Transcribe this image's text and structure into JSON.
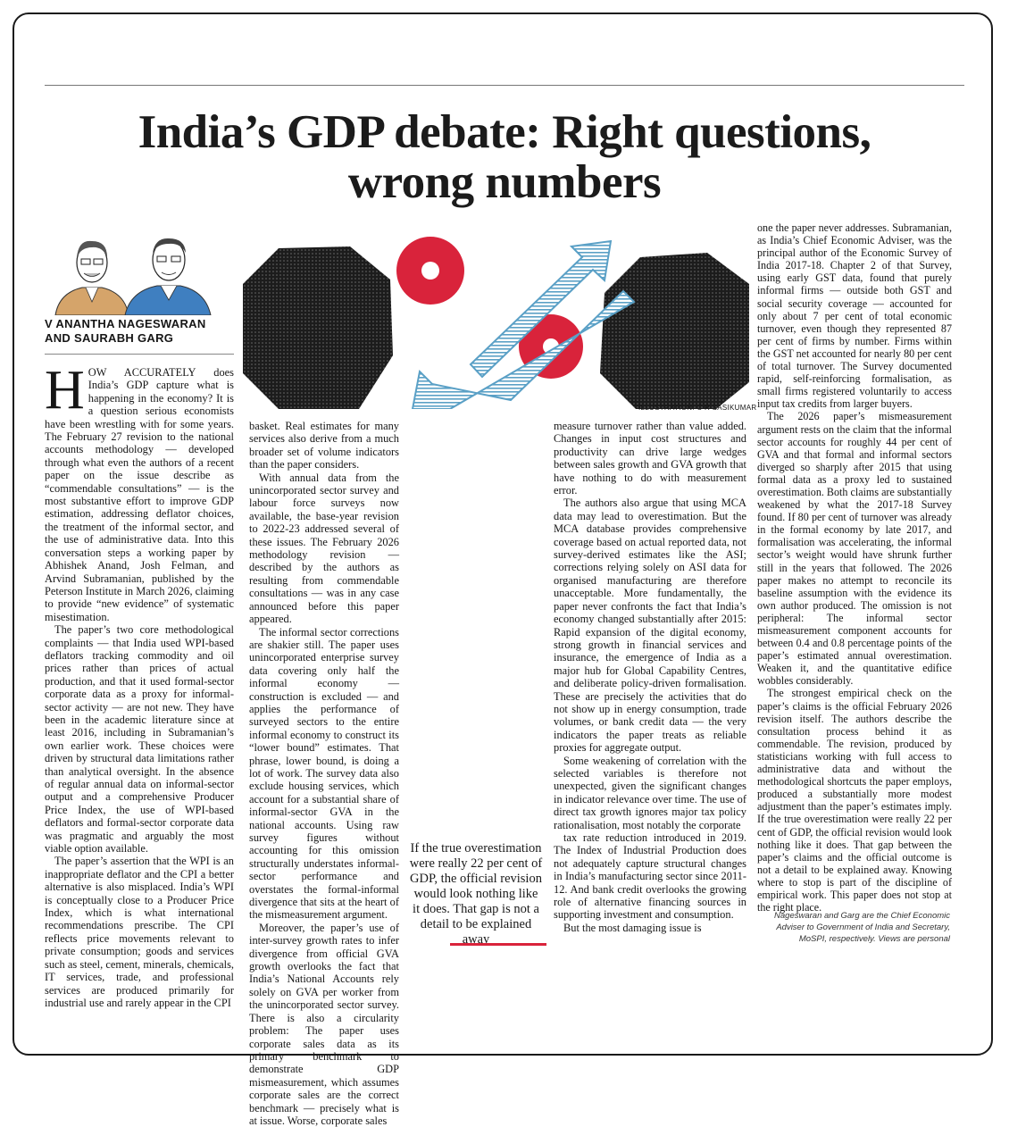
{
  "headline": {
    "line1": "India’s GDP debate: Right questions,",
    "line2": "wrong numbers"
  },
  "byline": {
    "line1": "V ANANTHA NAGESWARAN",
    "line2": "AND SAURABH GARG"
  },
  "illustration_credit": "ILLUSTRATION: C R SASIKUMAR",
  "colors": {
    "accent_red": "#d9233b",
    "pattern_blue": "#5aa0c6",
    "ink": "#161616"
  },
  "column1": {
    "dropcap": "H",
    "first_para_rest": "OW ACCURATELY does India’s GDP capture what is happening in the economy? It is a question serious economists have been wrestling with for some years. The February 27 revision to the national accounts methodology — developed through what even the authors of a recent paper on the issue describe as “commendable consultations” — is the most substantive effort to improve GDP estimation, addressing deflator choices, the treatment of the informal sector, and the use of administrative data. Into this conversation steps a working paper by Abhishek Anand, Josh Felman, and Arvind Subramanian, published by the Peterson Institute in March 2026, claiming to provide “new evidence” of systematic misestimation.",
    "p2": "The paper’s two core methodological complaints — that India used WPI-based deflators tracking commodity and oil prices rather than prices of actual production, and that it used formal-sector corporate data as a proxy for informal-sector activity — are not new. They have been in the academic literature since at least 2016, including in Subramanian’s own earlier work. These choices were driven by structural data limitations rather than analytical oversight. In the absence of regular annual data on informal-sector output and a comprehensive Producer Price Index, the use of WPI-based deflators and formal-sector corporate data was pragmatic and arguably the most viable option available.",
    "p3": "The paper’s assertion that the WPI is an inappropriate deflator and the CPI a better alternative is also misplaced. India’s WPI is conceptually close to a Producer Price Index, which is what international recommendations prescribe. The CPI reflects price movements relevant to private consumption; goods and services such as steel, cement, minerals, chemicals, IT services, trade, and professional services are produced primarily for industrial use and rarely appear in the CPI"
  },
  "column2": {
    "p1": "basket. Real estimates for many services also derive from a much broader set of volume indicators than the paper considers.",
    "p2": "With annual data from the unincorporated sector survey and labour force surveys now available, the base-year revision to 2022-23 addressed several of these issues. The February 2026 methodology revision — described by the authors as resulting from commendable consultations — was in any case announced before this paper appeared.",
    "p3": "The informal sector corrections are shakier still. The paper uses unincorporated enterprise survey data covering only half the informal economy — construction is excluded — and applies the performance of surveyed sectors to the entire informal economy to construct its “lower bound” estimates. That phrase, lower bound, is doing a lot of work. The survey data also exclude housing services, which account for a substantial share of informal-sector GVA in the national accounts. Using raw survey figures without accounting for this omission structurally understates informal-sector performance and overstates the formal-informal divergence that sits at the heart of the mismeasurement argument.",
    "p4": "Moreover, the paper’s use of inter-survey growth rates to infer divergence from official GVA growth overlooks the fact that India’s National Accounts rely solely on GVA per worker from the unincorporated sector survey. There is also a circularity problem: The paper uses corporate sales data as its primary benchmark to demonstrate GDP mismeasurement, which assumes corporate sales are the correct benchmark — precisely what is at issue. Worse, corporate sales"
  },
  "column3": {
    "p1": "measure turnover rather than value added. Changes in input cost structures and productivity can drive large wedges between sales growth and GVA growth that have nothing to do with measurement error.",
    "p2": "The authors also argue that using MCA data may lead to overestimation. But the MCA database provides comprehensive coverage based on actual reported data, not survey-derived estimates like the ASI; corrections relying solely on ASI data for organised manufacturing are therefore unacceptable. More fundamentally, the paper never confronts the fact that India’s economy changed substantially after 2015: Rapid expansion of the digital economy, strong growth in financial services and insurance, the emergence of India as a major hub for Global Capability Centres, and deliberate policy-driven formalisation. These are precisely the activities that do not show up in energy consumption, trade volumes, or bank credit data — the very indicators the paper treats as reliable proxies for aggregate output.",
    "p3": "Some weakening of correlation with the selected variables is therefore not unexpected, given the significant changes in indicator relevance over time. The use of direct tax growth ignores major tax policy rationalisation, most notably the corporate",
    "p4": "tax rate reduction introduced in 2019. The Index of Industrial Production does not adequately capture structural changes in India’s manufacturing sector since 2011-12. And bank credit overlooks the growing role of alternative financing sources in supporting investment and consumption.",
    "p5": "But the most damaging issue is"
  },
  "column4": {
    "p1": "one the paper never addresses. Subramanian, as India’s Chief Economic Adviser, was the principal author of the Economic Survey of India 2017-18. Chapter 2 of that Survey, using early GST data, found that purely informal firms — outside both GST and social security coverage — accounted for only about 7 per cent of total economic turnover, even though they represented 87 per cent of firms by number. Firms within the GST net accounted for nearly 80 per cent of total turnover. The Survey documented rapid, self-reinforcing formalisation, as small firms registered voluntarily to access input tax credits from larger buyers.",
    "p2": "The 2026 paper’s mismeasurement argument rests on the claim that the informal sector accounts for roughly 44 per cent of GVA and that formal and informal sectors diverged so sharply after 2015 that using formal data as a proxy led to sustained overestimation. Both claims are substantially weakened by what the 2017-18 Survey found. If 80 per cent of turnover was already in the formal economy by late 2017, and formalisation was accelerating, the informal sector’s weight would have shrunk further still in the years that followed. The 2026 paper makes no attempt to reconcile its baseline assumption with the evidence its own author produced. The omission is not peripheral: The informal sector mismeasurement component accounts for between 0.4 and 0.8 percentage points of the paper’s estimated annual overestimation. Weaken it, and the quantitative edifice wobbles considerably.",
    "p3": "The strongest empirical check on the paper’s claims is the official February 2026 revision itself. The authors describe the consultation process behind it as commendable. The revision, produced by statisticians working with full access to administrative data and without the methodological shortcuts the paper employs, produced a substantially more modest adjustment than the paper’s estimates imply. If the true overestimation were really 22 per cent of GDP, the official revision would look nothing like it does. That gap between the paper’s claims and the official outcome is not a detail to be explained away. Knowing where to stop is part of the discipline of empirical work. This paper does not stop at the right place."
  },
  "pullquote": "If the true overestimation were really 22 per cent of GDP, the official revision would look nothing like it does. That gap is not a detail to be explained away",
  "footnote": {
    "line1": "Nageswaran and Garg are the Chief Economic",
    "line2": "Adviser to Government of India and Secretary,",
    "line3": "MoSPI, respectively. Views are personal"
  }
}
